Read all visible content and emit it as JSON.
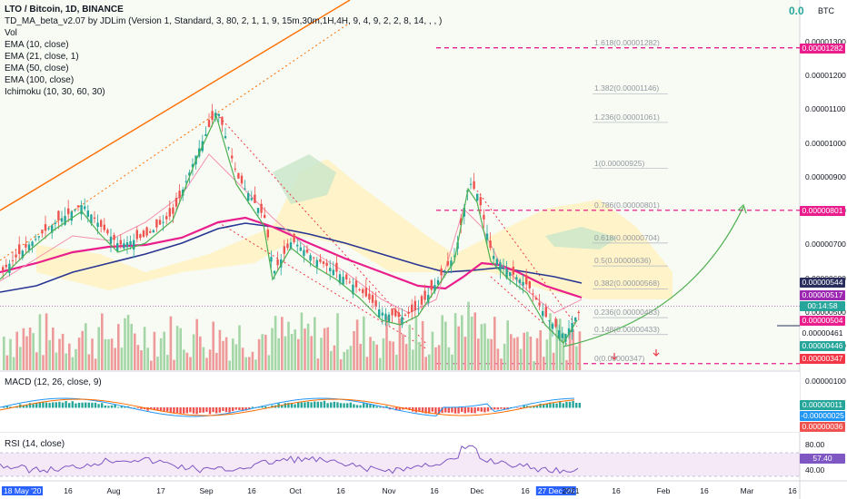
{
  "header": {
    "symbol_line": "LTO / Bitcoin, 1D, BINANCE",
    "indicator_line": "TD_MA_beta_v2.07 by JDLim (Version 1, Standard, 3, 80, 2, 1, 1, 9, 15m,30m,1H,4H, 9, 4, 9, 2, 2, 8, 14, , , )",
    "vol_label": "Vol",
    "ema10": "EMA (10, close)",
    "ema21": "EMA (21, close, 1)",
    "ema50": "EMA (50, close)",
    "ema100": "EMA (100, close)",
    "ichimoku": "Ichimoku (10, 30, 60, 30)",
    "top_right_value": "0.0",
    "currency": "BTC"
  },
  "macd_label": "MACD (12, 26, close, 9)",
  "rsi_label": "RSI (14, close)",
  "price_axis": [
    "0.00001300",
    "0.00001200",
    "0.00001100",
    "0.00001000",
    "0.00000900",
    "0.00000800",
    "0.00000700",
    "0.00000600",
    "0.00000500",
    "0.00000400"
  ],
  "price_tags": [
    {
      "text": "0.00001282",
      "color": "#e91e8c"
    },
    {
      "text": "0.00000801",
      "color": "#e91e8c"
    },
    {
      "text": "0.00000544",
      "color": "#2a2e5e"
    },
    {
      "text": "0.00000517",
      "color": "#9c27b0"
    },
    {
      "text": "00:14:58",
      "color": "#26a69a"
    },
    {
      "text": "0.00000504",
      "color": "#e91e8c"
    },
    {
      "text": "0.00000461",
      "color": "#ffffff"
    },
    {
      "text": "0.00000446",
      "color": "#26a69a"
    },
    {
      "text": "0.00000347",
      "color": "#f23645"
    }
  ],
  "fib_labels": [
    "1.618(0.00001282)",
    "1.382(0.00001146)",
    "1.236(0.00001061)",
    "1(0.00000925)",
    "0.786(0.00000801)",
    "0.618(0.00000704)",
    "0.5(0.00000636)",
    "0.382(0.00000568)",
    "0.236(0.00000483)",
    "0.148(0.00000433)",
    "0(0.00000347)"
  ],
  "macd_axis": {
    "top": "0.00000100",
    "tag1": "0.00000011",
    "tag2": "-0.00000025",
    "tag3": "0.00000036"
  },
  "rsi_axis": {
    "top": "80.00",
    "tag": "57.40",
    "bottom": "40.00"
  },
  "x_axis": [
    "18 May '20",
    "16",
    "Aug",
    "17",
    "Sep",
    "16",
    "Oct",
    "16",
    "Nov",
    "16",
    "Dec",
    "16",
    "27 Dec '20",
    "2021",
    "16",
    "Feb",
    "16",
    "Mar",
    "16"
  ],
  "chart_data": {
    "type": "line",
    "title": "LTO / Bitcoin, 1D, BINANCE",
    "series": [
      {
        "name": "EMA (50, close)",
        "values": [
          5e-06,
          5.5e-06,
          6e-06,
          6.4e-06,
          6.6e-06,
          6.5e-06,
          6e-06,
          5.6e-06,
          5.3e-06,
          5e-06,
          4.7e-06,
          5e-06,
          5.8e-06,
          5.6e-06,
          5.2e-06,
          5e-06
        ]
      },
      {
        "name": "EMA (100, close)",
        "values": [
          5.2e-06,
          5.5e-06,
          5.9e-06,
          6.2e-06,
          6.6e-06,
          6.9e-06,
          6.7e-06,
          6.4e-06,
          6.1e-06,
          5.9e-06,
          5.7e-06,
          5.6e-06,
          5.7e-06,
          5.8e-06,
          5.6e-06,
          5.44e-06
        ]
      }
    ],
    "ylim": [
      3.4e-06,
      1.32e-05
    ],
    "rsi_value": 57.4,
    "last_price": 5.17e-06
  }
}
